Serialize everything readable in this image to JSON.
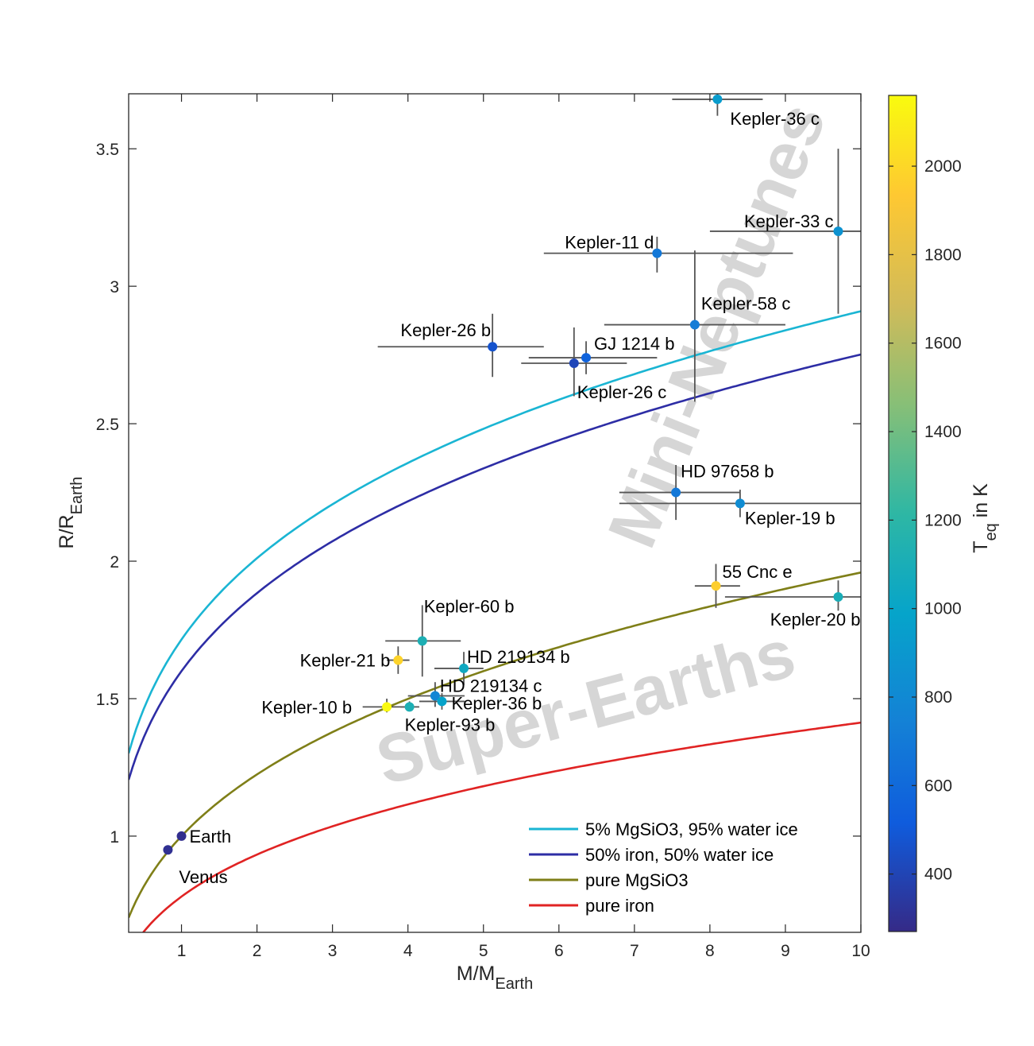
{
  "chart_data": {
    "type": "scatter",
    "xlabel": {
      "main": "M/M",
      "sub": "Earth"
    },
    "ylabel": {
      "main": "R/R",
      "sub": "Earth"
    },
    "xlim": [
      0.3,
      10
    ],
    "ylim": [
      0.65,
      3.7
    ],
    "xticks": [
      1,
      2,
      3,
      4,
      5,
      6,
      7,
      8,
      9,
      10
    ],
    "xtick_labels": [
      "1",
      "2",
      "3",
      "4",
      "5",
      "6",
      "7",
      "8",
      "9",
      "10"
    ],
    "yticks": [
      1,
      1.5,
      2,
      2.5,
      3,
      3.5
    ],
    "ytick_labels": [
      "1",
      "1.5",
      "2",
      "2.5",
      "3",
      "3.5"
    ],
    "colorbar": {
      "label": {
        "main": "T",
        "sub": "eq",
        "suffix": " in K"
      },
      "range": [
        270,
        2160
      ],
      "ticks": [
        400,
        600,
        800,
        1000,
        1200,
        1400,
        1600,
        1800,
        2000
      ],
      "tick_labels": [
        "400",
        "600",
        "800",
        "1000",
        "1200",
        "1400",
        "1600",
        "1800",
        "2000"
      ]
    },
    "watermarks": [
      "Super-Earths",
      "Mini-Neptunes"
    ],
    "legend_position": "bottom-right",
    "series": [
      {
        "name": "5% MgSiO3, 95% water ice",
        "color": "#1AB5D3",
        "coef": 1.715,
        "exp": 0.2295
      },
      {
        "name": "50% iron, 50% water ice",
        "color": "#2D2DA5",
        "coef": 1.6,
        "exp": 0.2355
      },
      {
        "name": "pure MgSiO3",
        "color": "#7F7F18",
        "coef": 1.0,
        "exp": 0.292
      },
      {
        "name": "pure iron",
        "color": "#E02323",
        "coef": 0.78,
        "exp": 0.258
      }
    ],
    "planets": [
      {
        "name": "Kepler-36 c",
        "mass": 8.1,
        "radius": 3.68,
        "mlo": 7.5,
        "mhi": 8.7,
        "rlo": 3.62,
        "rhi": 3.7,
        "teq": 930,
        "lx": 16,
        "ly": 32,
        "anchor": "start"
      },
      {
        "name": "Kepler-33 c",
        "mass": 9.7,
        "radius": 3.2,
        "mlo": 8.0,
        "mhi": 10.0,
        "rlo": 2.9,
        "rhi": 3.5,
        "teq": 860,
        "lx": -6,
        "ly": -5,
        "anchor": "end"
      },
      {
        "name": "Kepler-11 d",
        "mass": 7.3,
        "radius": 3.12,
        "mlo": 5.8,
        "mhi": 9.1,
        "rlo": 3.05,
        "rhi": 3.18,
        "teq": 690,
        "lx": -4,
        "ly": -6,
        "anchor": "end"
      },
      {
        "name": "Kepler-58 c",
        "mass": 7.8,
        "radius": 2.86,
        "mlo": 6.6,
        "mhi": 9.0,
        "rlo": 2.58,
        "rhi": 3.13,
        "teq": 720,
        "lx": 8,
        "ly": -19,
        "anchor": "start"
      },
      {
        "name": "Kepler-26 b",
        "mass": 5.12,
        "radius": 2.78,
        "mlo": 3.6,
        "mhi": 5.8,
        "rlo": 2.67,
        "rhi": 2.9,
        "teq": 470,
        "lx": -2,
        "ly": -13,
        "anchor": "end"
      },
      {
        "name": "GJ 1214 b",
        "mass": 6.36,
        "radius": 2.74,
        "mlo": 5.6,
        "mhi": 7.3,
        "rlo": 2.68,
        "rhi": 2.8,
        "teq": 560,
        "lx": 10,
        "ly": -10,
        "anchor": "start"
      },
      {
        "name": "Kepler-26 c",
        "mass": 6.2,
        "radius": 2.72,
        "mlo": 5.5,
        "mhi": 6.9,
        "rlo": 2.6,
        "rhi": 2.85,
        "teq": 410,
        "lx": 4,
        "ly": 44,
        "anchor": "start"
      },
      {
        "name": "HD 97658 b",
        "mass": 7.55,
        "radius": 2.25,
        "mlo": 6.8,
        "mhi": 8.4,
        "rlo": 2.15,
        "rhi": 2.35,
        "teq": 690,
        "lx": 6,
        "ly": -19,
        "anchor": "start"
      },
      {
        "name": "Kepler-19 b",
        "mass": 8.4,
        "radius": 2.21,
        "mlo": 6.8,
        "mhi": 10.0,
        "rlo": 2.16,
        "rhi": 2.26,
        "teq": 820,
        "lx": 6,
        "ly": 26,
        "anchor": "start"
      },
      {
        "name": "55 Cnc e",
        "mass": 8.08,
        "radius": 1.91,
        "mlo": 7.8,
        "mhi": 8.4,
        "rlo": 1.83,
        "rhi": 1.99,
        "teq": 1960,
        "lx": 8,
        "ly": -10,
        "anchor": "start"
      },
      {
        "name": "Kepler-20 b",
        "mass": 9.7,
        "radius": 1.87,
        "mlo": 8.2,
        "mhi": 10.0,
        "rlo": 1.82,
        "rhi": 1.93,
        "teq": 1100,
        "lx": 28,
        "ly": 36,
        "anchor": "end"
      },
      {
        "name": "Kepler-60 b",
        "mass": 4.19,
        "radius": 1.71,
        "mlo": 3.7,
        "mhi": 4.7,
        "rlo": 1.58,
        "rhi": 1.84,
        "teq": 1120,
        "lx": 2,
        "ly": -36,
        "anchor": "start"
      },
      {
        "name": "Kepler-21 b",
        "mass": 3.87,
        "radius": 1.64,
        "mlo": 3.72,
        "mhi": 4.02,
        "rlo": 1.59,
        "rhi": 1.69,
        "teq": 1980,
        "lx": -10,
        "ly": 8,
        "anchor": "end"
      },
      {
        "name": "HD 219134 b",
        "mass": 4.74,
        "radius": 1.61,
        "mlo": 4.35,
        "mhi": 5.0,
        "rlo": 1.55,
        "rhi": 1.67,
        "teq": 1040,
        "lx": 4,
        "ly": -7,
        "anchor": "start"
      },
      {
        "name": "HD 219134 c",
        "mass": 4.36,
        "radius": 1.51,
        "mlo": 4.0,
        "mhi": 4.75,
        "rlo": 1.47,
        "rhi": 1.56,
        "teq": 780,
        "lx": 6,
        "ly": -5,
        "anchor": "start"
      },
      {
        "name": "Kepler-36 b",
        "mass": 4.45,
        "radius": 1.49,
        "mlo": 4.15,
        "mhi": 4.75,
        "rlo": 1.46,
        "rhi": 1.52,
        "teq": 980,
        "lx": 12,
        "ly": 10,
        "anchor": "start"
      },
      {
        "name": "Kepler-10 b",
        "mass": 3.72,
        "radius": 1.47,
        "mlo": 3.4,
        "mhi": 4.04,
        "rlo": 1.45,
        "rhi": 1.5,
        "teq": 2150,
        "lx": -44,
        "ly": 8,
        "anchor": "end"
      },
      {
        "name": "Kepler-93 b",
        "mass": 4.02,
        "radius": 1.47,
        "mlo": 3.9,
        "mhi": 4.15,
        "rlo": 1.46,
        "rhi": 1.49,
        "teq": 1120,
        "lx": -6,
        "ly": 30,
        "anchor": "start"
      },
      {
        "name": "Earth",
        "mass": 1.0,
        "radius": 1.0,
        "mlo": 1.0,
        "mhi": 1.0,
        "rlo": 1.0,
        "rhi": 1.0,
        "teq": 290,
        "lx": 10,
        "ly": 8,
        "anchor": "start"
      },
      {
        "name": "Venus",
        "mass": 0.82,
        "radius": 0.95,
        "mlo": 0.82,
        "mhi": 0.82,
        "rlo": 0.95,
        "rhi": 0.95,
        "teq": 300,
        "lx": 14,
        "ly": 42,
        "anchor": "start"
      }
    ]
  }
}
